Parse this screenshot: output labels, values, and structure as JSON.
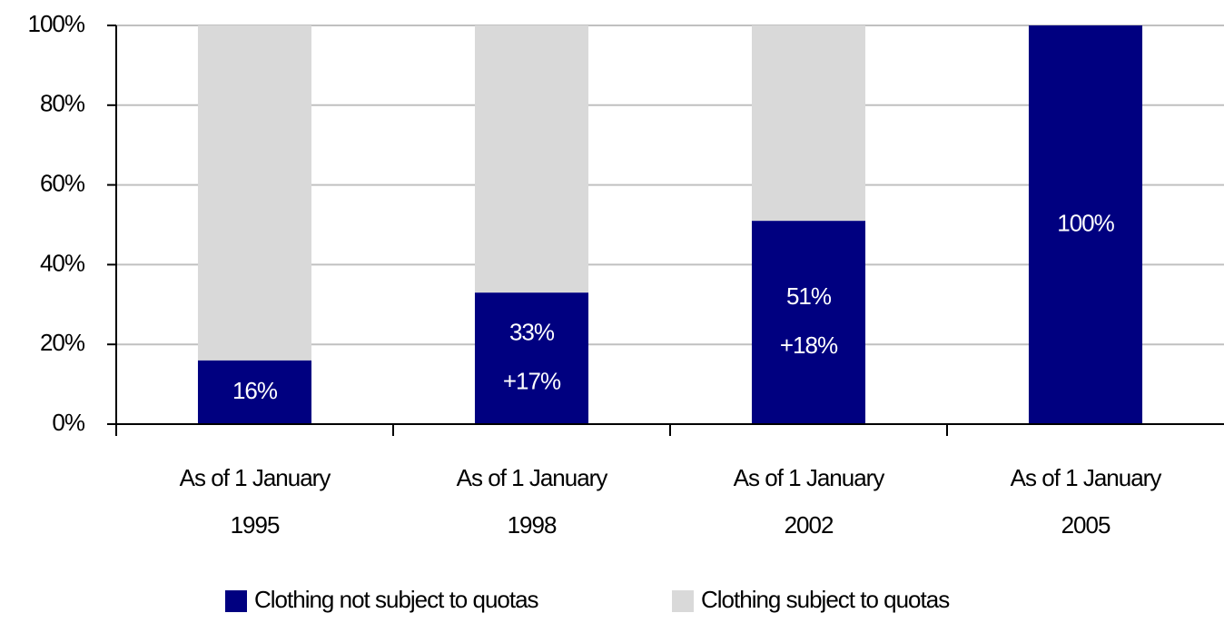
{
  "chart_data": {
    "type": "stacked_bar",
    "categories": [
      [
        "As of 1 January",
        "1995"
      ],
      [
        "As of 1 January",
        "1998"
      ],
      [
        "As of 1 January",
        "2002"
      ],
      [
        "As of 1 January",
        "2005"
      ]
    ],
    "series": [
      {
        "name": "Clothing not subject to quotas",
        "color": "#000080",
        "values": [
          16,
          33,
          51,
          100
        ],
        "value_labels": [
          "16%",
          "33%",
          "51%",
          "100%"
        ],
        "change_labels": [
          null,
          "+17%",
          "+18%",
          null
        ]
      },
      {
        "name": "Clothing subject to quotas",
        "color": "#d9d9d9",
        "values": [
          84,
          67,
          49,
          0
        ]
      }
    ],
    "ylim": [
      0,
      100
    ],
    "yticks": [
      {
        "value": 0,
        "label": "0%"
      },
      {
        "value": 20,
        "label": "20%"
      },
      {
        "value": 40,
        "label": "40%"
      },
      {
        "value": 60,
        "label": "60%"
      },
      {
        "value": 80,
        "label": "80%"
      },
      {
        "value": 100,
        "label": "100%"
      }
    ],
    "grid": true,
    "legend": "bottom"
  }
}
